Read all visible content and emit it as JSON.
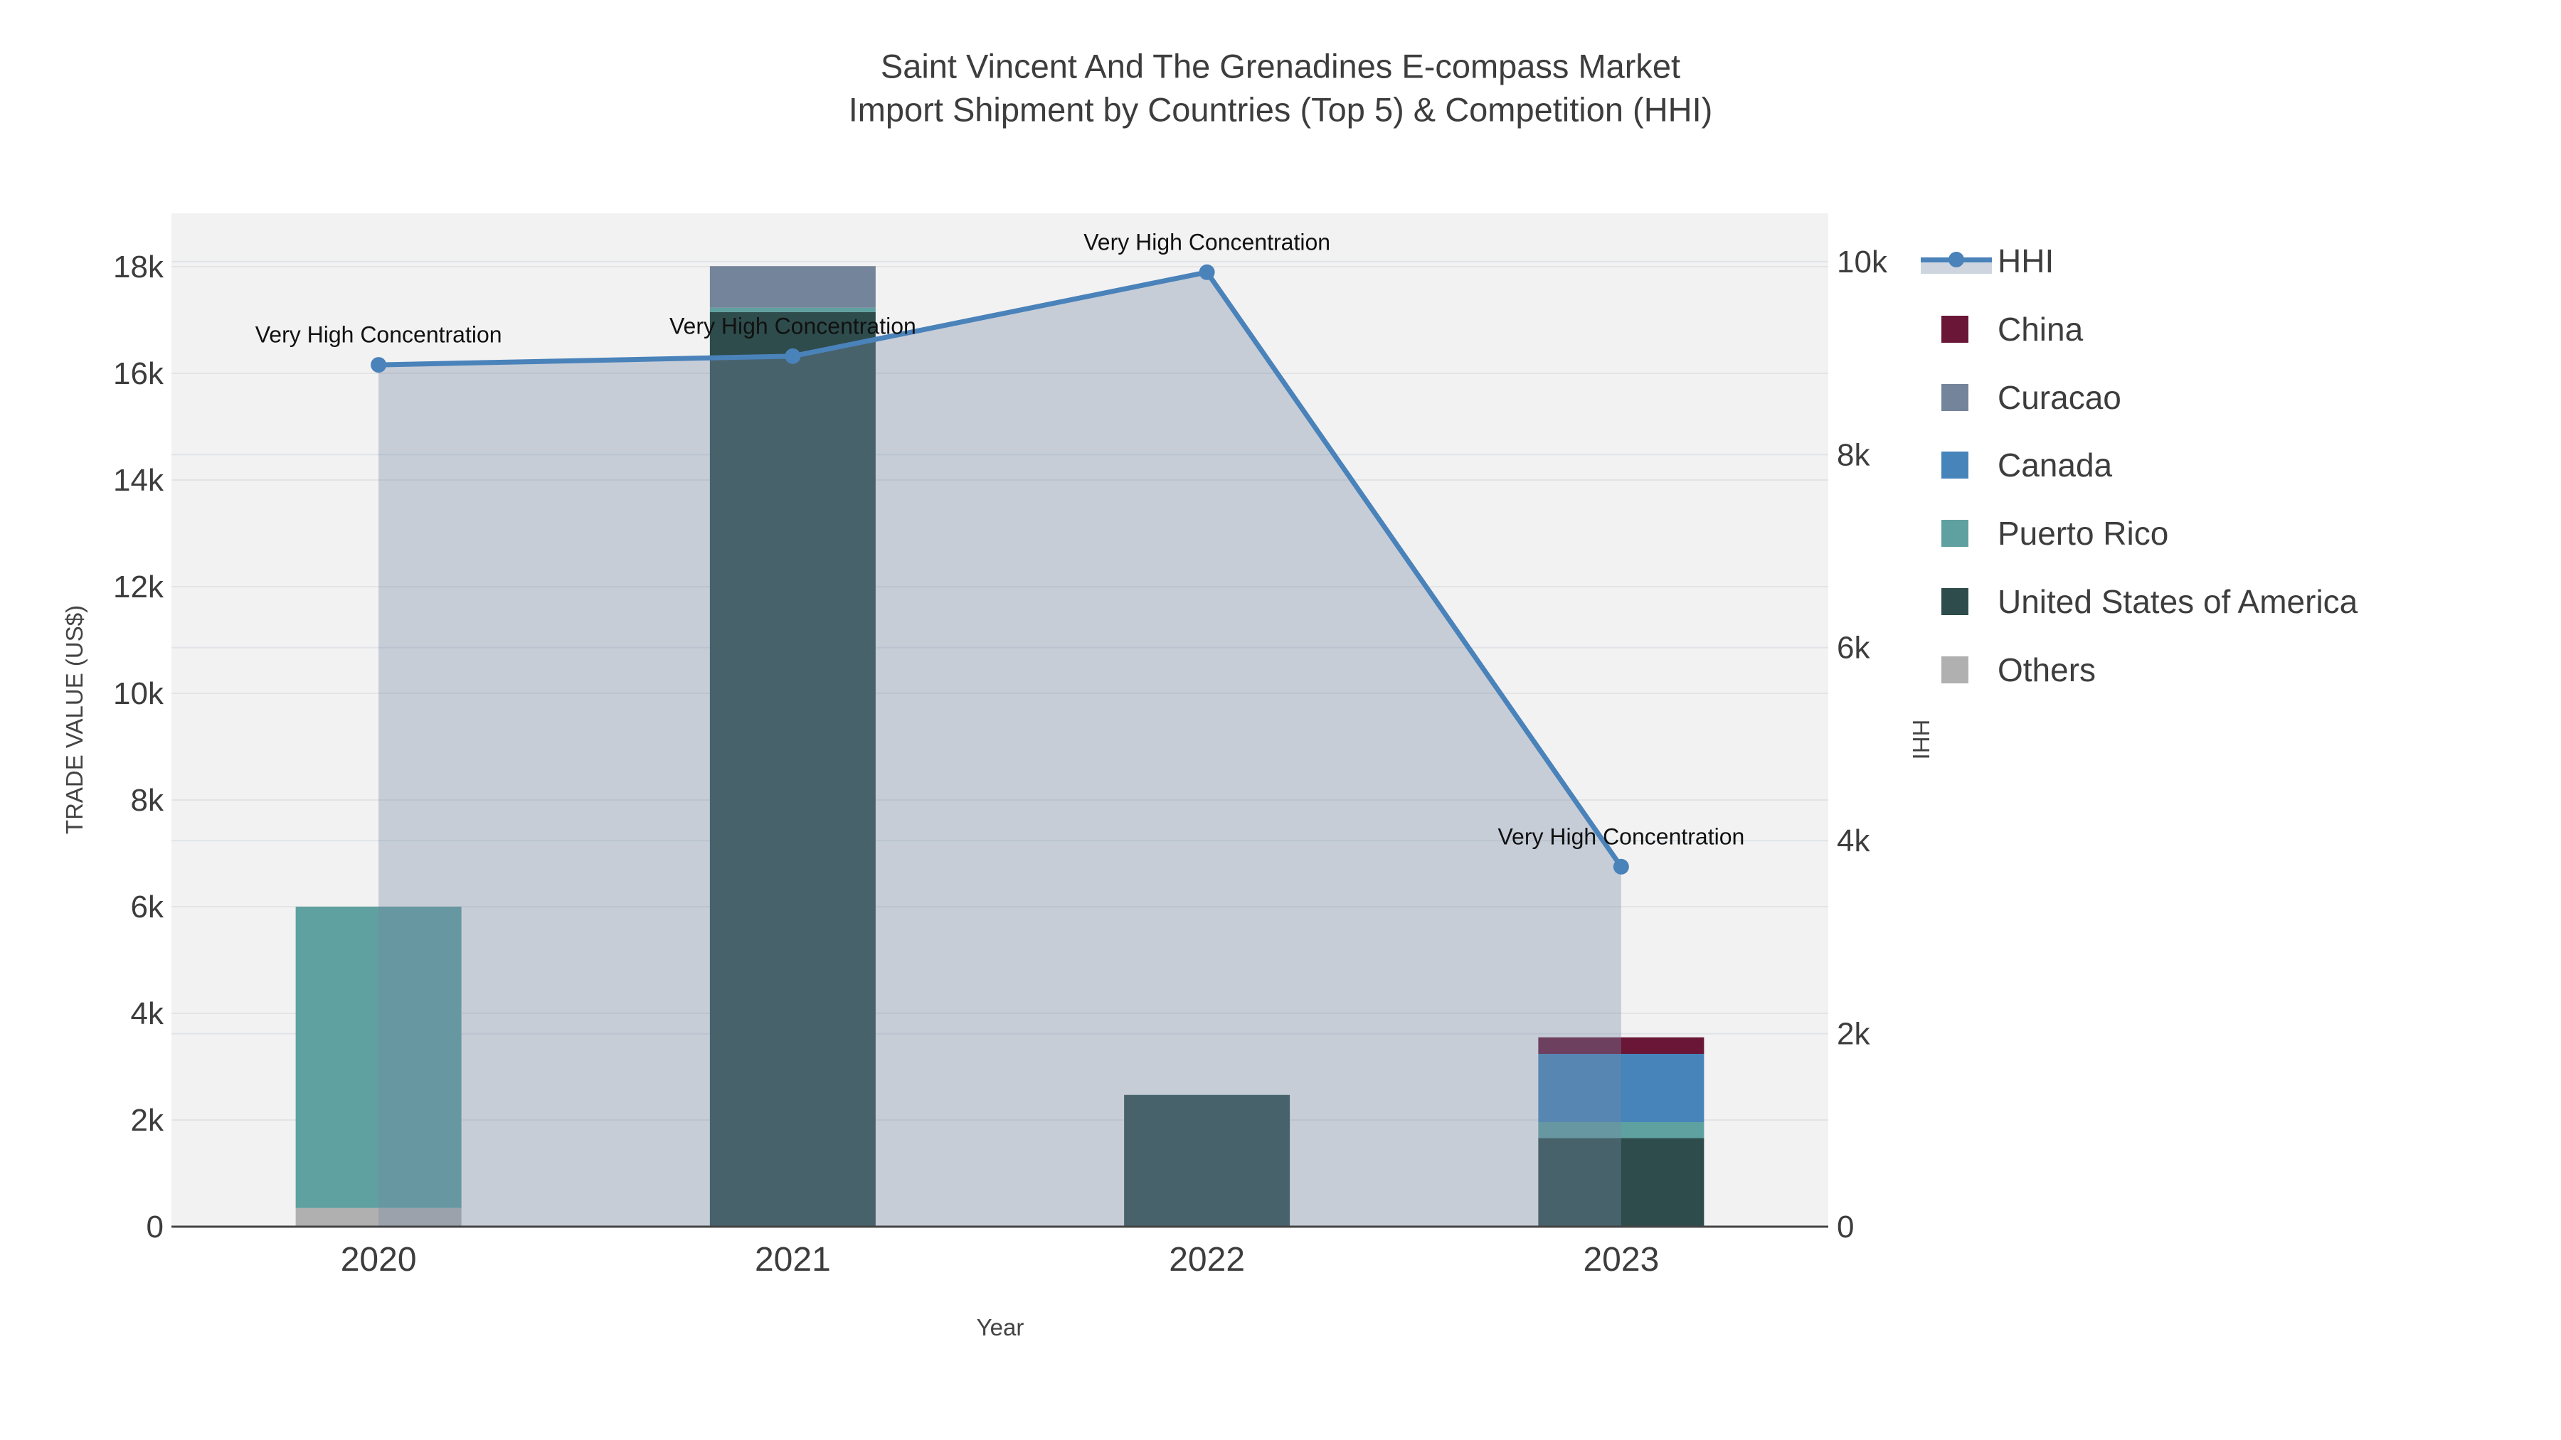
{
  "title": {
    "line1": "Saint Vincent And The Grenadines E-compass Market",
    "line2": "Import Shipment by Countries (Top 5) & Competition (HHI)"
  },
  "chart_data": {
    "type": "combo-stacked-bar-line",
    "categories": [
      "2020",
      "2021",
      "2022",
      "2023"
    ],
    "bar_series": [
      {
        "name": "Others",
        "color": "#b0b0b0",
        "values": [
          350,
          0,
          0,
          0
        ]
      },
      {
        "name": "United States of America",
        "color": "#2e4c4c",
        "values": [
          0,
          17150,
          2470,
          1660
        ]
      },
      {
        "name": "Puerto Rico",
        "color": "#5fa0a0",
        "values": [
          5650,
          80,
          0,
          300
        ]
      },
      {
        "name": "Canada",
        "color": "#4784ba",
        "values": [
          0,
          0,
          0,
          1280
        ]
      },
      {
        "name": "Curacao",
        "color": "#74849a",
        "values": [
          0,
          780,
          0,
          0
        ]
      },
      {
        "name": "China",
        "color": "#6a1637",
        "values": [
          0,
          0,
          0,
          310
        ]
      }
    ],
    "line_series": {
      "name": "HHI",
      "color": "#4a82ba",
      "fill_color": "rgba(120,138,165,0.36)",
      "values": [
        8930,
        9020,
        9890,
        3730
      ]
    },
    "annotations": [
      {
        "text": "Very High Concentration",
        "category_index": 0
      },
      {
        "text": "Very High Concentration",
        "category_index": 1
      },
      {
        "text": "Very High Concentration",
        "category_index": 2
      },
      {
        "text": "Very High Concentration",
        "category_index": 3
      }
    ],
    "x_axis": {
      "title": "Year"
    },
    "y_left": {
      "title": "TRADE VALUE (US$)",
      "max": 19000,
      "tick_labels": [
        "0",
        "2k",
        "4k",
        "6k",
        "8k",
        "10k",
        "12k",
        "14k",
        "16k",
        "18k"
      ],
      "tick_values": [
        0,
        2000,
        4000,
        6000,
        8000,
        10000,
        12000,
        14000,
        16000,
        18000
      ]
    },
    "y_right": {
      "title": "HHI",
      "max": 10500,
      "tick_labels": [
        "0",
        "2k",
        "4k",
        "6k",
        "8k",
        "10k"
      ],
      "tick_values": [
        0,
        2000,
        4000,
        6000,
        8000,
        10000
      ]
    },
    "legend": [
      {
        "label": "HHI",
        "color": "#4a82ba",
        "type": "line"
      },
      {
        "label": "China",
        "color": "#6a1637",
        "type": "swatch"
      },
      {
        "label": "Curacao",
        "color": "#74849a",
        "type": "swatch"
      },
      {
        "label": "Canada",
        "color": "#4784ba",
        "type": "swatch"
      },
      {
        "label": "Puerto Rico",
        "color": "#5fa0a0",
        "type": "swatch"
      },
      {
        "label": "United States of America",
        "color": "#2e4c4c",
        "type": "swatch"
      },
      {
        "label": "Others",
        "color": "#b0b0b0",
        "type": "swatch"
      }
    ],
    "layout_hints": {
      "plot_background": "#f2f2f2",
      "grid_color_left": "#e3e3e3",
      "grid_color_right": "#e0e4e8",
      "axis_line_color": "#444444",
      "tick_color": "#3d3d3d",
      "legend_position": "right"
    }
  }
}
